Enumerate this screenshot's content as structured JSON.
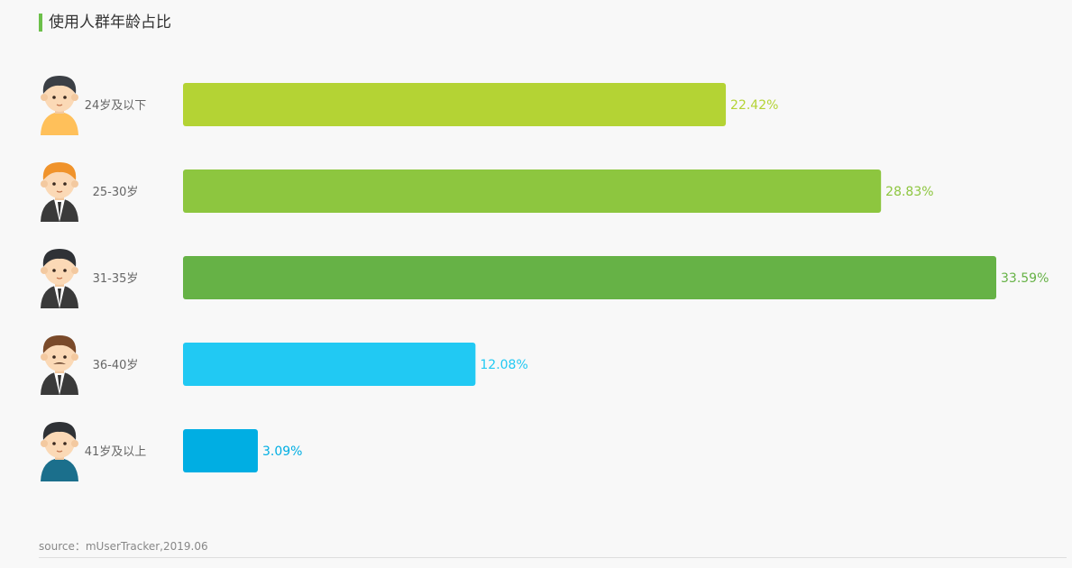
{
  "header": {
    "title": "使用人群年龄占比"
  },
  "footer": {
    "source": "source：mUserTracker,2019.06"
  },
  "chart_data": {
    "type": "bar",
    "orientation": "horizontal",
    "title": "使用人群年龄占比",
    "categories": [
      "24岁及以下",
      "25-30岁",
      "31-35岁",
      "36-40岁",
      "41岁及以上"
    ],
    "values": [
      22.42,
      28.83,
      33.59,
      12.08,
      3.09
    ],
    "value_labels": [
      "22.42%",
      "28.83%",
      "33.59%",
      "12.08%",
      "3.09%"
    ],
    "unit": "%",
    "colors": [
      "#b4d334",
      "#8dc63f",
      "#66b246",
      "#21c9f3",
      "#00aee3"
    ],
    "avatars": [
      "young-man-avatar-icon",
      "young-businessman-avatar-icon",
      "businessman-avatar-icon",
      "mustache-man-avatar-icon",
      "older-man-avatar-icon"
    ],
    "xlim": [
      0,
      33.59
    ],
    "grid": false,
    "legend": "none"
  }
}
